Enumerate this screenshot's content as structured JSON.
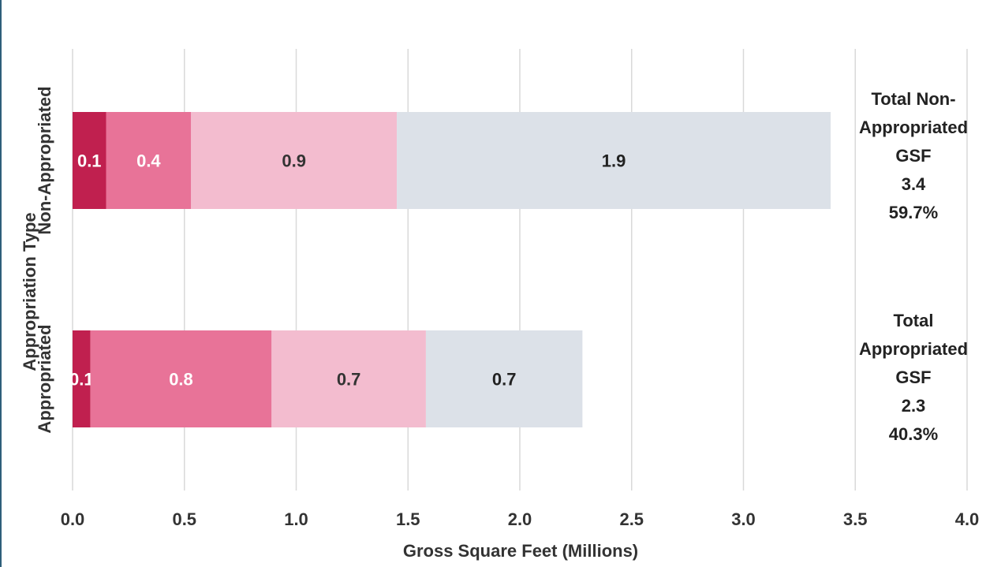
{
  "chart_data": {
    "type": "bar",
    "orientation": "horizontal",
    "stacked": true,
    "title": "",
    "xlabel": "Gross Square Feet  (Millions)",
    "ylabel": "Appropriation Type",
    "xlim": [
      0,
      4.0
    ],
    "x_ticks": [
      "0.0",
      "0.5",
      "1.0",
      "1.5",
      "2.0",
      "2.5",
      "3.0",
      "3.5",
      "4.0"
    ],
    "grid": true,
    "legend": "none",
    "categories": [
      "Non-Appropriated",
      "Appropriated"
    ],
    "series": [
      {
        "values": [
          0.15,
          0.08
        ],
        "labels": [
          "0.1",
          "0.1"
        ],
        "color": "#c0204f",
        "label_color": "#ffffff"
      },
      {
        "values": [
          0.38,
          0.81
        ],
        "labels": [
          "0.4",
          "0.8"
        ],
        "color": "#e87398",
        "label_color": "#ffffff"
      },
      {
        "values": [
          0.92,
          0.69
        ],
        "labels": [
          "0.9",
          "0.7"
        ],
        "color": "#f3bccf",
        "label_color": "#333333"
      },
      {
        "values": [
          1.94,
          0.7
        ],
        "labels": [
          "1.9",
          "0.7"
        ],
        "color": "#dce1e8",
        "label_color": "#222222"
      }
    ],
    "totals": [
      {
        "lines": [
          "Total Non-",
          "Appropriated",
          "GSF",
          "3.4",
          "59.7%"
        ]
      },
      {
        "lines": [
          "Total",
          "Appropriated",
          "GSF",
          "2.3",
          "40.3%"
        ]
      }
    ]
  }
}
